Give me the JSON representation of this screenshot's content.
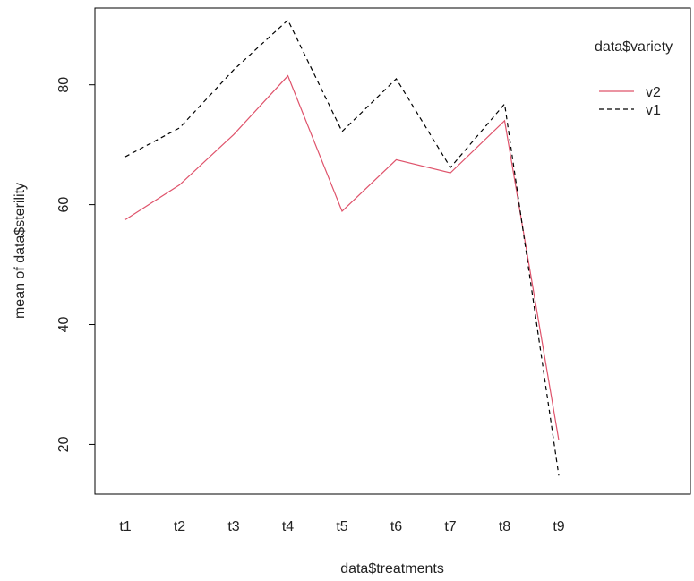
{
  "chart_data": {
    "type": "line",
    "title": "",
    "xlabel": "data$treatments",
    "ylabel": "mean of  data$sterility",
    "categories": [
      "t1",
      "t2",
      "t3",
      "t4",
      "t5",
      "t6",
      "t7",
      "t8",
      "t9"
    ],
    "yticks": [
      20,
      40,
      60,
      80
    ],
    "ylim": [
      11.7,
      92.8
    ],
    "legend": {
      "title": "data$variety",
      "position": "top-right"
    },
    "series": [
      {
        "name": "v2",
        "color": "#DF536B",
        "dash": "solid",
        "values": [
          57.5,
          63.3,
          71.7,
          81.5,
          58.9,
          67.5,
          65.3,
          74.0,
          20.7
        ]
      },
      {
        "name": "v1",
        "color": "#000000",
        "dash": "dashed",
        "values": [
          68.0,
          72.8,
          82.5,
          90.8,
          72.2,
          81.0,
          66.2,
          76.8,
          14.8
        ]
      }
    ],
    "grid": false
  }
}
